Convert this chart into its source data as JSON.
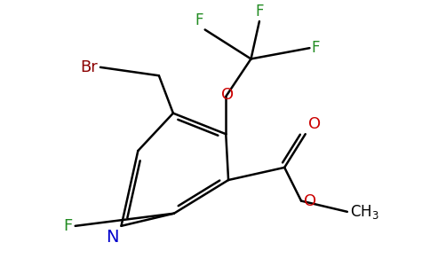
{
  "background_color": "#ffffff",
  "figsize": [
    4.84,
    3.0
  ],
  "dpi": 100,
  "ring_color": "#000000",
  "bond_lw": 1.8,
  "atom_colors": {
    "N": "#0000cc",
    "F": "#228B22",
    "Br": "#8B0000",
    "O": "#cc0000",
    "C": "#000000"
  }
}
